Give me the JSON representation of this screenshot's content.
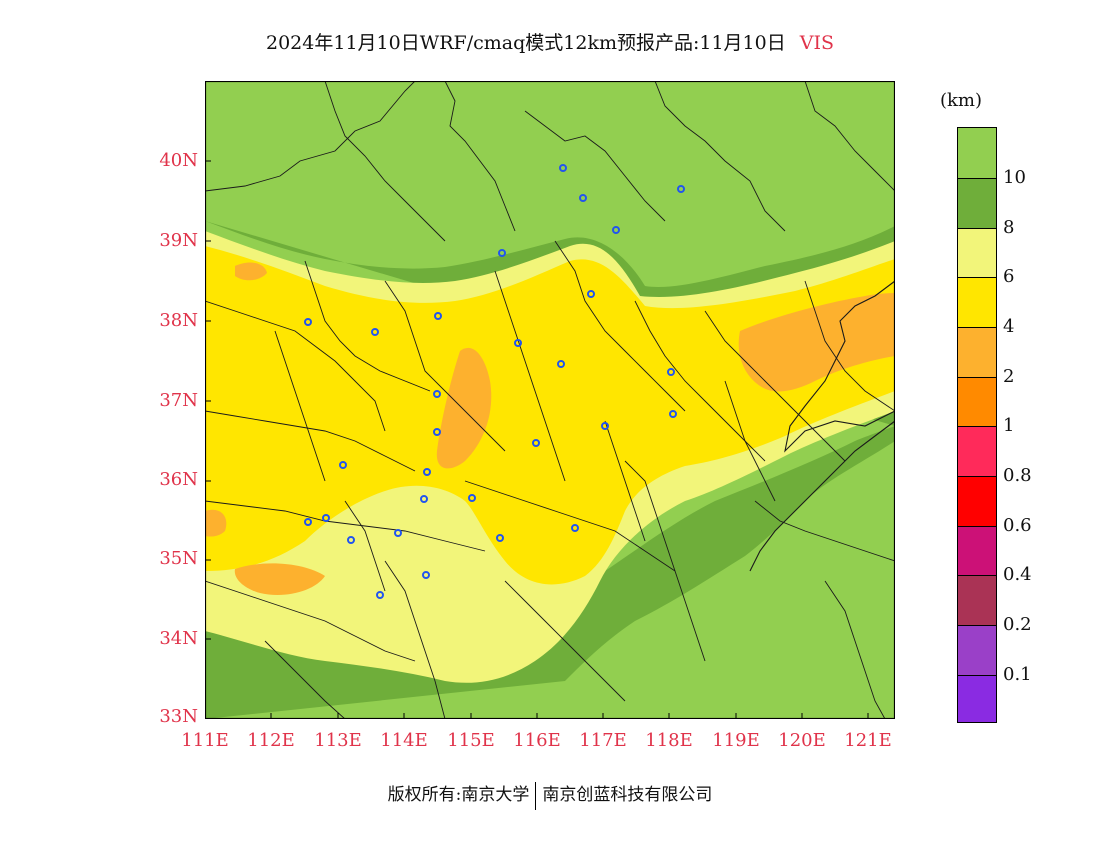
{
  "header": {
    "title": "2024年11月10日WRF/cmaq模式12km预报产品:11月10日",
    "variable": "VIS"
  },
  "map": {
    "lat_labels": [
      "33N",
      "34N",
      "35N",
      "36N",
      "37N",
      "38N",
      "39N",
      "40N"
    ],
    "lon_labels": [
      "111E",
      "112E",
      "113E",
      "114E",
      "115E",
      "116E",
      "117E",
      "118E",
      "119E",
      "120E",
      "121E"
    ],
    "lat_range": [
      33,
      41
    ],
    "lon_range": [
      111,
      121.4
    ]
  },
  "legend": {
    "unit": "(km)",
    "levels": [
      "10",
      "8",
      "6",
      "4",
      "2",
      "1",
      "0.8",
      "0.6",
      "0.4",
      "0.2",
      "0.1"
    ],
    "colors": [
      "#92cf50",
      "#6fae3a",
      "#f2f57a",
      "#ffe600",
      "#fdb12e",
      "#ff8a00",
      "#ff2a5a",
      "#ff0000",
      "#cc1177",
      "#aa3355",
      "#9a40c8",
      "#8a2be2"
    ]
  },
  "footer": {
    "copyright": "版权所有:南京大学",
    "company": "南京创蓝科技有限公司"
  },
  "colors": {
    "accent_red": "#e0334a",
    "vis_gt10": "#92cf50",
    "vis_8_10": "#6fae3a",
    "vis_6_8": "#f2f57a",
    "vis_4_6": "#ffe600",
    "vis_2_4": "#fdb12e",
    "station_marker": "#2255ee"
  }
}
